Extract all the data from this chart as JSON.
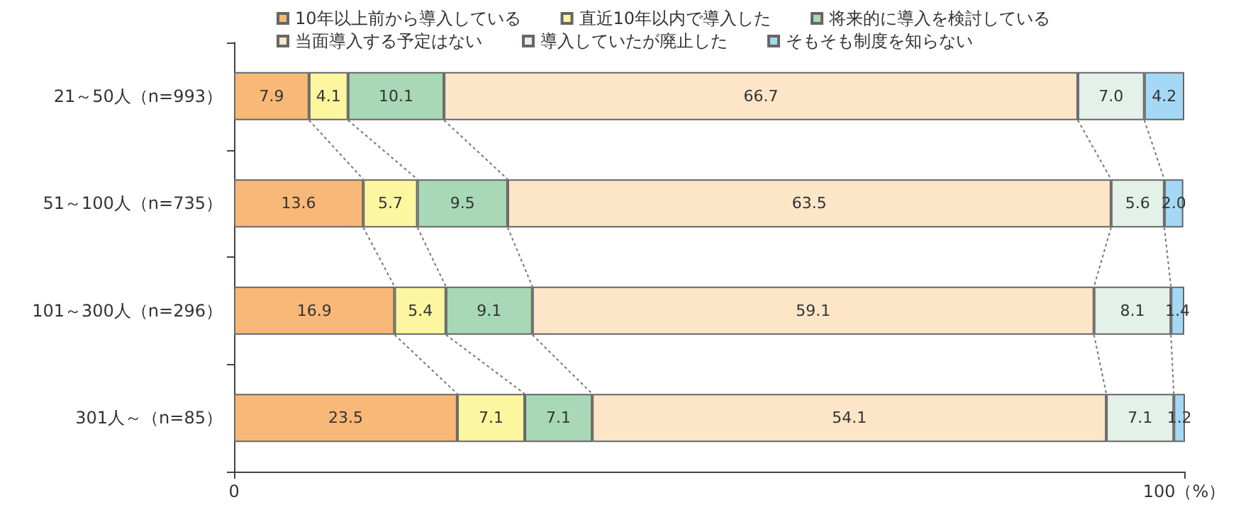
{
  "chart_data": {
    "type": "bar",
    "orientation": "horizontal",
    "stacked": true,
    "categories": [
      "21～50人（n=993）",
      "51～100人（n=735）",
      "101～300人（n=296）",
      "301人～（n=85）"
    ],
    "series": [
      {
        "name": "10年以上前から導入している",
        "color": "#f8b878",
        "values": [
          7.9,
          13.6,
          16.9,
          23.5
        ],
        "value_labels": [
          "7.9",
          "13.6",
          "16.9",
          "23.5"
        ]
      },
      {
        "name": "直近10年以内で導入した",
        "color": "#fdf6a0",
        "values": [
          4.1,
          5.7,
          5.4,
          7.1
        ],
        "value_labels": [
          "4.1",
          "5.7",
          "5.4",
          "7.1"
        ]
      },
      {
        "name": "将来的に導入を検討している",
        "color": "#a8d8b5",
        "values": [
          10.1,
          9.5,
          9.1,
          7.1
        ],
        "value_labels": [
          "10.1",
          "9.5",
          "9.1",
          "7.1"
        ]
      },
      {
        "name": "当面導入する予定はない",
        "color": "#fde5c8",
        "values": [
          66.7,
          63.5,
          59.1,
          54.1
        ],
        "value_labels": [
          "66.7",
          "63.5",
          "59.1",
          "54.1"
        ]
      },
      {
        "name": "導入していたが廃止した",
        "color": "#e3f1e8",
        "values": [
          7.0,
          5.6,
          8.1,
          7.1
        ],
        "value_labels": [
          "7.0",
          "5.6",
          "8.1",
          "7.1"
        ]
      },
      {
        "name": "そもそも制度を知らない",
        "color": "#a4d8f4",
        "values": [
          4.2,
          2.0,
          1.4,
          1.2
        ],
        "value_labels": [
          "4.2",
          "2.0",
          "1.4",
          "1.2"
        ]
      }
    ],
    "xlim": [
      0,
      100
    ],
    "xticks": [
      0,
      {
        "value": 100,
        "label": "100（%）"
      }
    ],
    "grid": false,
    "legend": "top"
  }
}
